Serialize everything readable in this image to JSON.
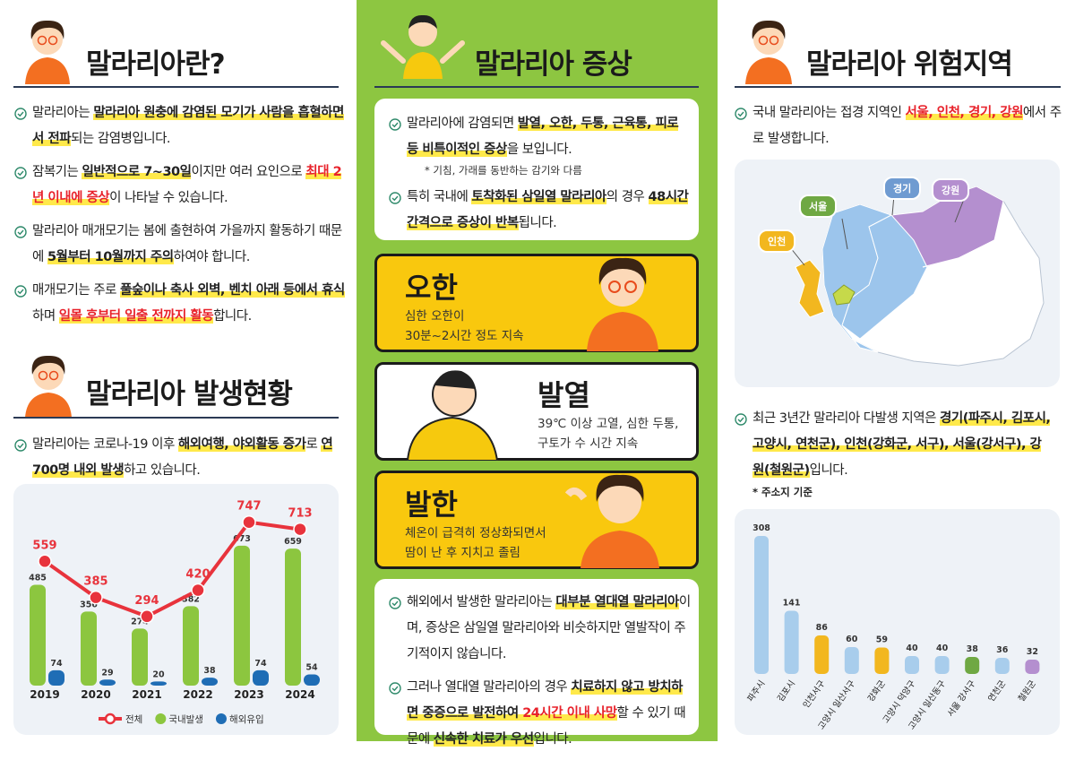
{
  "left": {
    "title1": "말라리아란?",
    "bullets1": [
      [
        {
          "text": "말라리아는 "
        },
        {
          "text": "말라리아 원충에 감염된 모기가 사람을 흡혈하면서 전파",
          "mark": "yellow"
        },
        {
          "text": "되는 감염병입니다."
        }
      ],
      [
        {
          "text": "잠복기는 "
        },
        {
          "text": "일반적으로 7~30일",
          "mark": "yellow"
        },
        {
          "text": "이지만 여러 요인으로 "
        },
        {
          "text": "최대 2년 이내에 증상",
          "mark": "red"
        },
        {
          "text": "이 나타날 수 있습니다."
        }
      ],
      [
        {
          "text": "말라리아 매개모기는 봄에 출현하여 가을까지 활동하기 때문에 "
        },
        {
          "text": "5월부터 10월까지 주의",
          "mark": "yellow"
        },
        {
          "text": "하여야 합니다."
        }
      ],
      [
        {
          "text": "매개모기는 주로 "
        },
        {
          "text": "풀숲이나 축사 외벽, 벤치 아래 등에서 휴식",
          "mark": "yellow"
        },
        {
          "text": "하며 "
        },
        {
          "text": "일몰 후부터 일출 전까지 활동",
          "mark": "red"
        },
        {
          "text": "합니다."
        }
      ]
    ],
    "title2": "말라리아 발생현황",
    "bullets2": [
      [
        {
          "text": "말라리아는 코로나-19 이후 "
        },
        {
          "text": "해외여행, 야외활동 증가",
          "mark": "yellow"
        },
        {
          "text": "로 "
        },
        {
          "text": "연 700명 내외 발생",
          "mark": "yellow"
        },
        {
          "text": "하고 있습니다."
        }
      ]
    ]
  },
  "middle": {
    "title": "말라리아 증상",
    "box1": [
      [
        {
          "text": "말라리아에 감염되면 "
        },
        {
          "text": "발열, 오한, 두통, 근육통, 피로 등 비특이적인 증상",
          "mark": "yellow"
        },
        {
          "text": "을 보입니다."
        }
      ],
      [
        {
          "text": "특히 국내에 "
        },
        {
          "text": "토착화된 삼일열 말라리아",
          "mark": "yellow"
        },
        {
          "text": "의 경우 "
        },
        {
          "text": "48시간 간격으로 증상이 반복",
          "mark": "yellow"
        },
        {
          "text": "됩니다."
        }
      ]
    ],
    "box1_note": "* 기침, 가래를 동반하는 감기와 다름",
    "cards": [
      {
        "title": "오한",
        "lines": [
          "심한 오한이",
          "30분~2시간 정도 지속"
        ]
      },
      {
        "title": "발열",
        "lines": [
          "39℃ 이상 고열, 심한 두통,",
          "구토가 수 시간 지속"
        ]
      },
      {
        "title": "발한",
        "lines": [
          "체온이 급격히 정상화되면서",
          "땀이 난 후 지치고 졸림"
        ]
      }
    ],
    "box2": [
      [
        {
          "text": "해외에서 발생한 말라리아는 "
        },
        {
          "text": "대부분 열대열 말라리아",
          "mark": "yellow"
        },
        {
          "text": "이며, 증상은 삼일열 말라리아와 비슷하지만 열발작이 주기적이지 않습니다."
        }
      ],
      [
        {
          "text": "그러나 열대열 말라리아의 경우 "
        },
        {
          "text": "치료하지 않고 방치하면 중증으로 발전하여 ",
          "mark": "yellow"
        },
        {
          "text": "24시간 이내 사망",
          "mark": "red"
        },
        {
          "text": "할 수 있기 때문에 "
        },
        {
          "text": "신속한 치료가 우선",
          "mark": "yellow"
        },
        {
          "text": "입니다."
        }
      ]
    ]
  },
  "right": {
    "title": "말라리아 위험지역",
    "bullets1": [
      [
        {
          "text": "국내 말라리아는 접경 지역인 "
        },
        {
          "text": "서울, 인천, 경기, 강원",
          "mark": "red"
        },
        {
          "text": "에서 주로 발생합니다."
        }
      ]
    ],
    "map_labels": {
      "gyeonggi": "경기",
      "gangwon": "강원",
      "seoul": "서울",
      "incheon": "인천"
    },
    "bullets2": [
      [
        {
          "text": "최근 3년간 말라리아 다발생 지역은 "
        },
        {
          "text": "경기(파주시, 김포시, 고양시, 연천군), 인천(강화군, 서구), 서울(강서구), 강원(철원군)",
          "mark": "yellow"
        },
        {
          "text": "입니다."
        }
      ]
    ],
    "note": "* 주소지 기준"
  },
  "chart_data": [
    {
      "type": "combo",
      "categories": [
        "2019",
        "2020",
        "2021",
        "2022",
        "2023",
        "2024"
      ],
      "series": [
        {
          "name": "전체",
          "kind": "line",
          "color": "#e8333c",
          "values": [
            559,
            385,
            294,
            420,
            747,
            713
          ]
        },
        {
          "name": "국내발생",
          "kind": "bar",
          "color": "#8cc63f",
          "values": [
            485,
            356,
            274,
            382,
            673,
            659
          ]
        },
        {
          "name": "해외유입",
          "kind": "bar",
          "color": "#1f6db5",
          "values": [
            74,
            29,
            20,
            38,
            74,
            54
          ]
        }
      ]
    },
    {
      "type": "bar",
      "categories": [
        "파주시",
        "김포시",
        "인천서구",
        "고양시 일산서구",
        "강화군",
        "고양시 덕양구",
        "고양시 일산동구",
        "서울 강서구",
        "연천군",
        "철원군"
      ],
      "values": [
        308,
        141,
        86,
        60,
        59,
        40,
        40,
        38,
        36,
        32
      ],
      "colors": [
        "#a8cdec",
        "#a8cdec",
        "#f2b71f",
        "#a8cdec",
        "#f2b71f",
        "#a8cdec",
        "#a8cdec",
        "#6fa843",
        "#a8cdec",
        "#b48fcf"
      ]
    }
  ]
}
